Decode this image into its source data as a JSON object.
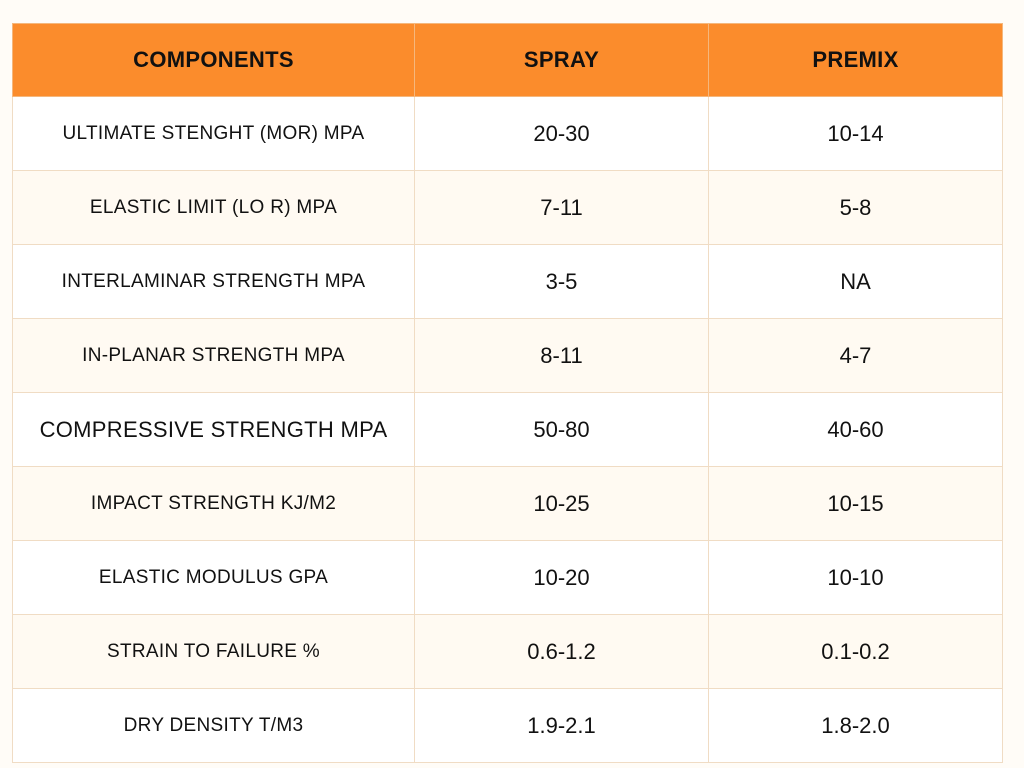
{
  "table": {
    "headers": [
      "COMPONENTS",
      "SPRAY",
      "PREMIX"
    ],
    "rows": [
      {
        "component": "ULTIMATE STENGHT (MOR)  MPA",
        "spray": "20-30",
        "premix": "10-14"
      },
      {
        "component": "ELASTIC LIMIT (LO R) MPA",
        "spray": "7-11",
        "premix": "5-8"
      },
      {
        "component": "INTERLAMINAR STRENGTH MPA",
        "spray": "3-5",
        "premix": "NA"
      },
      {
        "component": "IN-PLANAR STRENGTH MPA",
        "spray": "8-11",
        "premix": "4-7"
      },
      {
        "component": "COMPRESSIVE STRENGTH MPA",
        "spray": "50-80",
        "premix": "40-60"
      },
      {
        "component": "IMPACT STRENGTH KJ/M2",
        "spray": "10-25",
        "premix": "10-15"
      },
      {
        "component": "ELASTIC MODULUS GPA",
        "spray": "10-20",
        "premix": "10-10"
      },
      {
        "component": "STRAIN TO FAILURE %",
        "spray": "0.6-1.2",
        "premix": "0.1-0.2"
      },
      {
        "component": "DRY DENSITY T/M3",
        "spray": "1.9-2.1",
        "premix": "1.8-2.0"
      }
    ]
  },
  "colors": {
    "header_bg": "#fb8c2c",
    "border": "#f0dcc4",
    "page_bg": "#fffcf7"
  }
}
